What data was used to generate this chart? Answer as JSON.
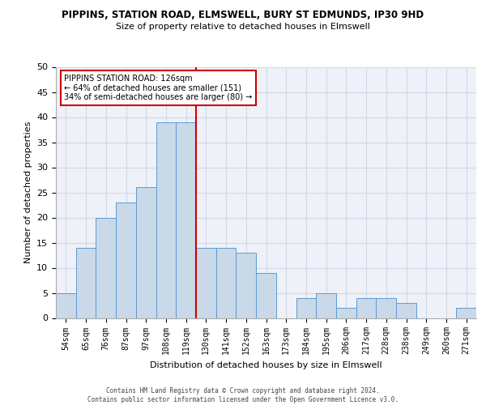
{
  "title_line1": "PIPPINS, STATION ROAD, ELMSWELL, BURY ST EDMUNDS, IP30 9HD",
  "title_line2": "Size of property relative to detached houses in Elmswell",
  "xlabel": "Distribution of detached houses by size in Elmswell",
  "ylabel": "Number of detached properties",
  "bar_labels": [
    "54sqm",
    "65sqm",
    "76sqm",
    "87sqm",
    "97sqm",
    "108sqm",
    "119sqm",
    "130sqm",
    "141sqm",
    "152sqm",
    "163sqm",
    "173sqm",
    "184sqm",
    "195sqm",
    "206sqm",
    "217sqm",
    "228sqm",
    "238sqm",
    "249sqm",
    "260sqm",
    "271sqm"
  ],
  "bar_values": [
    5,
    14,
    20,
    23,
    26,
    39,
    39,
    14,
    14,
    13,
    9,
    0,
    4,
    5,
    2,
    4,
    4,
    3,
    0,
    0,
    2
  ],
  "bar_color": "#c9d9e8",
  "bar_edge_color": "#5b9bd5",
  "grid_color": "#d0d8e8",
  "background_color": "#eef2f8",
  "property_line_x": 6.5,
  "annotation_text_line1": "PIPPINS STATION ROAD: 126sqm",
  "annotation_text_line2": "← 64% of detached houses are smaller (151)",
  "annotation_text_line3": "34% of semi-detached houses are larger (80) →",
  "annotation_box_color": "#cc0000",
  "line_color": "#cc0000",
  "ylim": [
    0,
    50
  ],
  "yticks": [
    0,
    5,
    10,
    15,
    20,
    25,
    30,
    35,
    40,
    45,
    50
  ],
  "footer_line1": "Contains HM Land Registry data © Crown copyright and database right 2024.",
  "footer_line2": "Contains public sector information licensed under the Open Government Licence v3.0."
}
